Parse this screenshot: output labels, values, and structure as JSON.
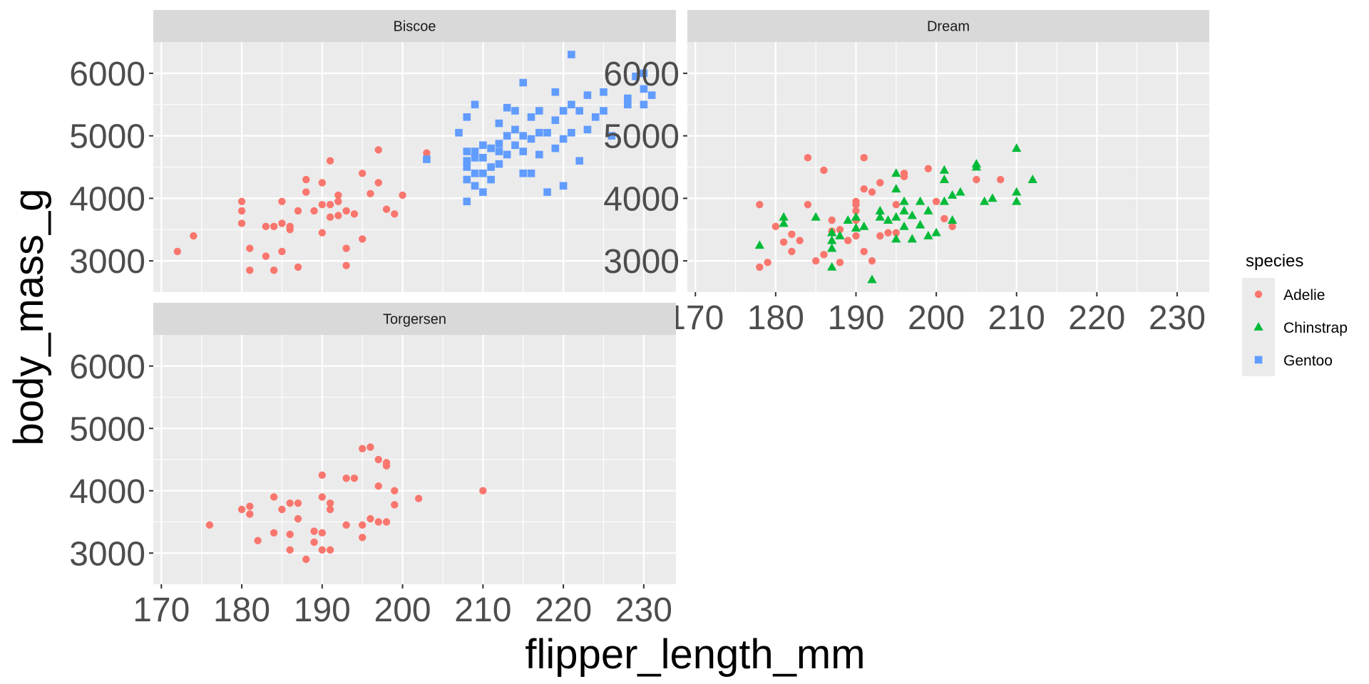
{
  "chart_data": {
    "type": "scatter",
    "facet_by": "island",
    "facets": [
      "Biscoe",
      "Dream",
      "Torgersen"
    ],
    "xlabel": "flipper_length_mm",
    "ylabel": "body_mass_g",
    "xlim": [
      169,
      234
    ],
    "ylim": [
      2500,
      6500
    ],
    "x_ticks": [
      "170",
      "180",
      "190",
      "200",
      "210",
      "220",
      "230"
    ],
    "y_ticks": [
      "3000",
      "4000",
      "5000",
      "6000"
    ],
    "grid": true,
    "legend": {
      "title": "species",
      "position": "right",
      "entries": [
        {
          "name": "Adelie",
          "color": "#F8766D",
          "shape": "circle"
        },
        {
          "name": "Chinstrap",
          "color": "#00BA38",
          "shape": "triangle"
        },
        {
          "name": "Gentoo",
          "color": "#619CFF",
          "shape": "square"
        }
      ]
    },
    "panel_background": "#EBEBEB",
    "strip_background": "#D9D9D9",
    "series": [
      {
        "name": "Adelie",
        "facet": "Biscoe",
        "points": [
          [
            172,
            3150
          ],
          [
            174,
            3400
          ],
          [
            180,
            3950
          ],
          [
            180,
            3800
          ],
          [
            180,
            3600
          ],
          [
            181,
            3200
          ],
          [
            181,
            2850
          ],
          [
            183,
            3550
          ],
          [
            183,
            3075
          ],
          [
            184,
            2850
          ],
          [
            184,
            3550
          ],
          [
            185,
            3150
          ],
          [
            185,
            3600
          ],
          [
            185,
            3950
          ],
          [
            186,
            3500
          ],
          [
            186,
            3550
          ],
          [
            187,
            3800
          ],
          [
            187,
            2900
          ],
          [
            188,
            4300
          ],
          [
            188,
            4100
          ],
          [
            189,
            3800
          ],
          [
            190,
            4250
          ],
          [
            190,
            3450
          ],
          [
            190,
            3900
          ],
          [
            191,
            4600
          ],
          [
            191,
            3900
          ],
          [
            191,
            3700
          ],
          [
            192,
            4050
          ],
          [
            192,
            3725
          ],
          [
            192,
            3950
          ],
          [
            193,
            3800
          ],
          [
            193,
            2925
          ],
          [
            193,
            3200
          ],
          [
            194,
            3750
          ],
          [
            195,
            3350
          ],
          [
            195,
            4400
          ],
          [
            196,
            4075
          ],
          [
            197,
            4775
          ],
          [
            197,
            4250
          ],
          [
            198,
            3825
          ],
          [
            199,
            3750
          ],
          [
            200,
            4050
          ],
          [
            203,
            4725
          ]
        ]
      },
      {
        "name": "Gentoo",
        "facet": "Biscoe",
        "points": [
          [
            203,
            4625
          ],
          [
            207,
            5050
          ],
          [
            208,
            3950
          ],
          [
            208,
            4300
          ],
          [
            208,
            4500
          ],
          [
            208,
            4600
          ],
          [
            208,
            4750
          ],
          [
            208,
            5300
          ],
          [
            209,
            4200
          ],
          [
            209,
            4400
          ],
          [
            209,
            4650
          ],
          [
            209,
            4750
          ],
          [
            209,
            5500
          ],
          [
            210,
            4100
          ],
          [
            210,
            4400
          ],
          [
            210,
            4650
          ],
          [
            210,
            4850
          ],
          [
            211,
            4300
          ],
          [
            211,
            4500
          ],
          [
            211,
            4800
          ],
          [
            212,
            4550
          ],
          [
            212,
            4750
          ],
          [
            212,
            4875
          ],
          [
            212,
            5200
          ],
          [
            213,
            4700
          ],
          [
            213,
            5000
          ],
          [
            213,
            5450
          ],
          [
            214,
            4850
          ],
          [
            214,
            5100
          ],
          [
            214,
            5400
          ],
          [
            215,
            4400
          ],
          [
            215,
            4750
          ],
          [
            215,
            5000
          ],
          [
            215,
            5850
          ],
          [
            216,
            4400
          ],
          [
            216,
            4950
          ],
          [
            216,
            5300
          ],
          [
            217,
            4700
          ],
          [
            217,
            5050
          ],
          [
            217,
            5400
          ],
          [
            218,
            4100
          ],
          [
            218,
            5050
          ],
          [
            219,
            4800
          ],
          [
            219,
            5250
          ],
          [
            219,
            5700
          ],
          [
            220,
            4200
          ],
          [
            220,
            4950
          ],
          [
            220,
            5400
          ],
          [
            221,
            5050
          ],
          [
            221,
            5500
          ],
          [
            221,
            6300
          ],
          [
            222,
            4600
          ],
          [
            222,
            5400
          ],
          [
            223,
            5650
          ],
          [
            223,
            5100
          ],
          [
            224,
            5300
          ],
          [
            225,
            5400
          ],
          [
            225,
            5700
          ],
          [
            226,
            5000
          ],
          [
            228,
            5500
          ],
          [
            228,
            5600
          ],
          [
            229,
            5950
          ],
          [
            230,
            5500
          ],
          [
            230,
            5750
          ],
          [
            230,
            6000
          ],
          [
            231,
            5650
          ]
        ]
      },
      {
        "name": "Adelie",
        "facet": "Dream",
        "points": [
          [
            178,
            3900
          ],
          [
            178,
            2900
          ],
          [
            179,
            2975
          ],
          [
            180,
            3550
          ],
          [
            181,
            3300
          ],
          [
            182,
            3150
          ],
          [
            182,
            3425
          ],
          [
            183,
            3325
          ],
          [
            184,
            3900
          ],
          [
            184,
            4650
          ],
          [
            185,
            3000
          ],
          [
            186,
            3100
          ],
          [
            186,
            4450
          ],
          [
            187,
            3650
          ],
          [
            187,
            3475
          ],
          [
            188,
            3500
          ],
          [
            188,
            2975
          ],
          [
            189,
            3325
          ],
          [
            190,
            3950
          ],
          [
            190,
            3900
          ],
          [
            190,
            3800
          ],
          [
            190,
            3650
          ],
          [
            190,
            3400
          ],
          [
            191,
            4150
          ],
          [
            191,
            3150
          ],
          [
            192,
            4100
          ],
          [
            192,
            3000
          ],
          [
            193,
            4250
          ],
          [
            193,
            3400
          ],
          [
            194,
            3450
          ],
          [
            195,
            3900
          ],
          [
            195,
            3450
          ],
          [
            196,
            4400
          ],
          [
            196,
            4350
          ],
          [
            199,
            4475
          ],
          [
            200,
            3950
          ],
          [
            201,
            3675
          ],
          [
            202,
            3550
          ],
          [
            205,
            4300
          ],
          [
            208,
            4300
          ],
          [
            191,
            4650
          ]
        ]
      },
      {
        "name": "Chinstrap",
        "facet": "Dream",
        "points": [
          [
            178,
            3250
          ],
          [
            181,
            3700
          ],
          [
            181,
            3600
          ],
          [
            185,
            3700
          ],
          [
            187,
            3325
          ],
          [
            187,
            2900
          ],
          [
            187,
            3450
          ],
          [
            187,
            3200
          ],
          [
            188,
            3400
          ],
          [
            189,
            3650
          ],
          [
            190,
            3525
          ],
          [
            190,
            3700
          ],
          [
            191,
            3550
          ],
          [
            192,
            2700
          ],
          [
            193,
            3800
          ],
          [
            193,
            3700
          ],
          [
            194,
            3650
          ],
          [
            195,
            4400
          ],
          [
            195,
            4150
          ],
          [
            195,
            3700
          ],
          [
            195,
            3350
          ],
          [
            196,
            3800
          ],
          [
            196,
            3550
          ],
          [
            196,
            3950
          ],
          [
            197,
            3725
          ],
          [
            197,
            3350
          ],
          [
            198,
            3950
          ],
          [
            198,
            3575
          ],
          [
            199,
            3800
          ],
          [
            199,
            3400
          ],
          [
            200,
            3450
          ],
          [
            201,
            4450
          ],
          [
            201,
            3950
          ],
          [
            201,
            4300
          ],
          [
            202,
            3650
          ],
          [
            202,
            4050
          ],
          [
            203,
            4100
          ],
          [
            205,
            4550
          ],
          [
            205,
            4500
          ],
          [
            206,
            3950
          ],
          [
            207,
            4000
          ],
          [
            210,
            4800
          ],
          [
            210,
            4100
          ],
          [
            210,
            3950
          ],
          [
            212,
            4300
          ]
        ]
      },
      {
        "name": "Adelie",
        "facet": "Torgersen",
        "points": [
          [
            176,
            3450
          ],
          [
            180,
            3700
          ],
          [
            181,
            3625
          ],
          [
            181,
            3750
          ],
          [
            182,
            3200
          ],
          [
            184,
            3325
          ],
          [
            184,
            3900
          ],
          [
            185,
            3700
          ],
          [
            186,
            3050
          ],
          [
            186,
            3800
          ],
          [
            186,
            3300
          ],
          [
            187,
            3550
          ],
          [
            187,
            3800
          ],
          [
            188,
            2900
          ],
          [
            189,
            3175
          ],
          [
            189,
            3350
          ],
          [
            190,
            4250
          ],
          [
            190,
            3900
          ],
          [
            190,
            3325
          ],
          [
            190,
            3050
          ],
          [
            191,
            3800
          ],
          [
            191,
            3700
          ],
          [
            191,
            3050
          ],
          [
            193,
            3450
          ],
          [
            193,
            4200
          ],
          [
            194,
            4200
          ],
          [
            195,
            4675
          ],
          [
            195,
            3450
          ],
          [
            195,
            3250
          ],
          [
            196,
            4700
          ],
          [
            196,
            3550
          ],
          [
            197,
            4500
          ],
          [
            197,
            3500
          ],
          [
            197,
            4075
          ],
          [
            198,
            4450
          ],
          [
            198,
            3500
          ],
          [
            198,
            4400
          ],
          [
            199,
            3775
          ],
          [
            199,
            4000
          ],
          [
            202,
            3875
          ],
          [
            210,
            4000
          ]
        ]
      }
    ]
  }
}
